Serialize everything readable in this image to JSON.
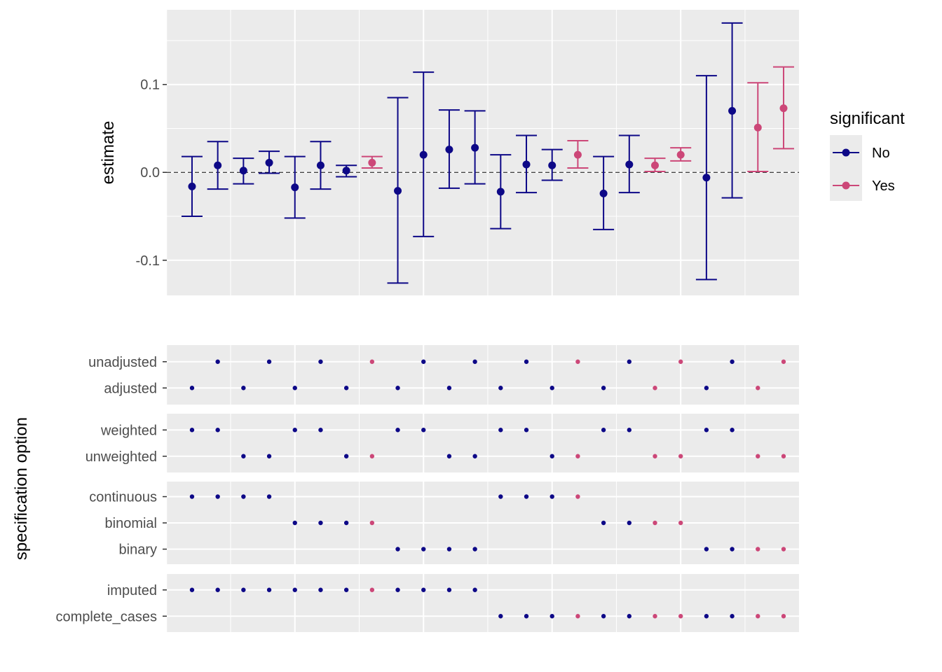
{
  "chart_data": {
    "type": "specification-curve",
    "legend": {
      "title": "significant",
      "entries": [
        {
          "label": "No",
          "color": "#0d0887"
        },
        {
          "label": "Yes",
          "color": "#cc4778"
        }
      ],
      "placement": "right"
    },
    "estimate_panel": {
      "ylabel": "estimate",
      "ylim": [
        -0.14,
        0.185
      ],
      "yticks": [
        -0.1,
        0.0,
        0.1
      ],
      "ytick_labels": [
        "-0.1",
        "0.0",
        "0.1"
      ],
      "reference_line": 0.0,
      "grid": true
    },
    "specifications": [
      {
        "estimate": -0.016,
        "lower": -0.05,
        "upper": 0.018,
        "significant": "No"
      },
      {
        "estimate": 0.008,
        "lower": -0.019,
        "upper": 0.035,
        "significant": "No"
      },
      {
        "estimate": 0.002,
        "lower": -0.013,
        "upper": 0.016,
        "significant": "No"
      },
      {
        "estimate": 0.011,
        "lower": -0.001,
        "upper": 0.024,
        "significant": "No"
      },
      {
        "estimate": -0.017,
        "lower": -0.052,
        "upper": 0.018,
        "significant": "No"
      },
      {
        "estimate": 0.008,
        "lower": -0.019,
        "upper": 0.035,
        "significant": "No"
      },
      {
        "estimate": 0.002,
        "lower": -0.005,
        "upper": 0.008,
        "significant": "No"
      },
      {
        "estimate": 0.011,
        "lower": 0.005,
        "upper": 0.018,
        "significant": "Yes"
      },
      {
        "estimate": -0.021,
        "lower": -0.126,
        "upper": 0.085,
        "significant": "No"
      },
      {
        "estimate": 0.02,
        "lower": -0.073,
        "upper": 0.114,
        "significant": "No"
      },
      {
        "estimate": 0.026,
        "lower": -0.018,
        "upper": 0.071,
        "significant": "No"
      },
      {
        "estimate": 0.028,
        "lower": -0.013,
        "upper": 0.07,
        "significant": "No"
      },
      {
        "estimate": -0.022,
        "lower": -0.064,
        "upper": 0.02,
        "significant": "No"
      },
      {
        "estimate": 0.009,
        "lower": -0.023,
        "upper": 0.042,
        "significant": "No"
      },
      {
        "estimate": 0.008,
        "lower": -0.009,
        "upper": 0.026,
        "significant": "No"
      },
      {
        "estimate": 0.02,
        "lower": 0.005,
        "upper": 0.036,
        "significant": "Yes"
      },
      {
        "estimate": -0.024,
        "lower": -0.065,
        "upper": 0.018,
        "significant": "No"
      },
      {
        "estimate": 0.009,
        "lower": -0.023,
        "upper": 0.042,
        "significant": "No"
      },
      {
        "estimate": 0.008,
        "lower": 0.001,
        "upper": 0.016,
        "significant": "Yes"
      },
      {
        "estimate": 0.02,
        "lower": 0.013,
        "upper": 0.028,
        "significant": "Yes"
      },
      {
        "estimate": -0.006,
        "lower": -0.122,
        "upper": 0.11,
        "significant": "No"
      },
      {
        "estimate": 0.07,
        "lower": -0.029,
        "upper": 0.17,
        "significant": "No"
      },
      {
        "estimate": 0.051,
        "lower": 0.001,
        "upper": 0.102,
        "significant": "Yes"
      },
      {
        "estimate": 0.073,
        "lower": 0.027,
        "upper": 0.12,
        "significant": "Yes"
      }
    ],
    "choice_panel": {
      "ylabel": "specification option",
      "groups": [
        {
          "options": [
            "unadjusted",
            "adjusted"
          ],
          "assignment": [
            "adjusted",
            "unadjusted",
            "adjusted",
            "unadjusted",
            "adjusted",
            "unadjusted",
            "adjusted",
            "unadjusted",
            "adjusted",
            "unadjusted",
            "adjusted",
            "unadjusted",
            "adjusted",
            "unadjusted",
            "adjusted",
            "unadjusted",
            "adjusted",
            "unadjusted",
            "adjusted",
            "unadjusted",
            "adjusted",
            "unadjusted",
            "adjusted",
            "unadjusted"
          ]
        },
        {
          "options": [
            "weighted",
            "unweighted"
          ],
          "assignment": [
            "weighted",
            "weighted",
            "unweighted",
            "unweighted",
            "weighted",
            "weighted",
            "unweighted",
            "unweighted",
            "weighted",
            "weighted",
            "unweighted",
            "unweighted",
            "weighted",
            "weighted",
            "unweighted",
            "unweighted",
            "weighted",
            "weighted",
            "unweighted",
            "unweighted",
            "weighted",
            "weighted",
            "unweighted",
            "unweighted"
          ]
        },
        {
          "options": [
            "continuous",
            "binomial",
            "binary"
          ],
          "assignment": [
            "continuous",
            "continuous",
            "continuous",
            "continuous",
            "binomial",
            "binomial",
            "binomial",
            "binomial",
            "binary",
            "binary",
            "binary",
            "binary",
            "continuous",
            "continuous",
            "continuous",
            "continuous",
            "binomial",
            "binomial",
            "binomial",
            "binomial",
            "binary",
            "binary",
            "binary",
            "binary"
          ]
        },
        {
          "options": [
            "imputed",
            "complete_cases"
          ],
          "assignment": [
            "imputed",
            "imputed",
            "imputed",
            "imputed",
            "imputed",
            "imputed",
            "imputed",
            "imputed",
            "imputed",
            "imputed",
            "imputed",
            "imputed",
            "complete_cases",
            "complete_cases",
            "complete_cases",
            "complete_cases",
            "complete_cases",
            "complete_cases",
            "complete_cases",
            "complete_cases",
            "complete_cases",
            "complete_cases",
            "complete_cases",
            "complete_cases"
          ]
        }
      ]
    }
  }
}
